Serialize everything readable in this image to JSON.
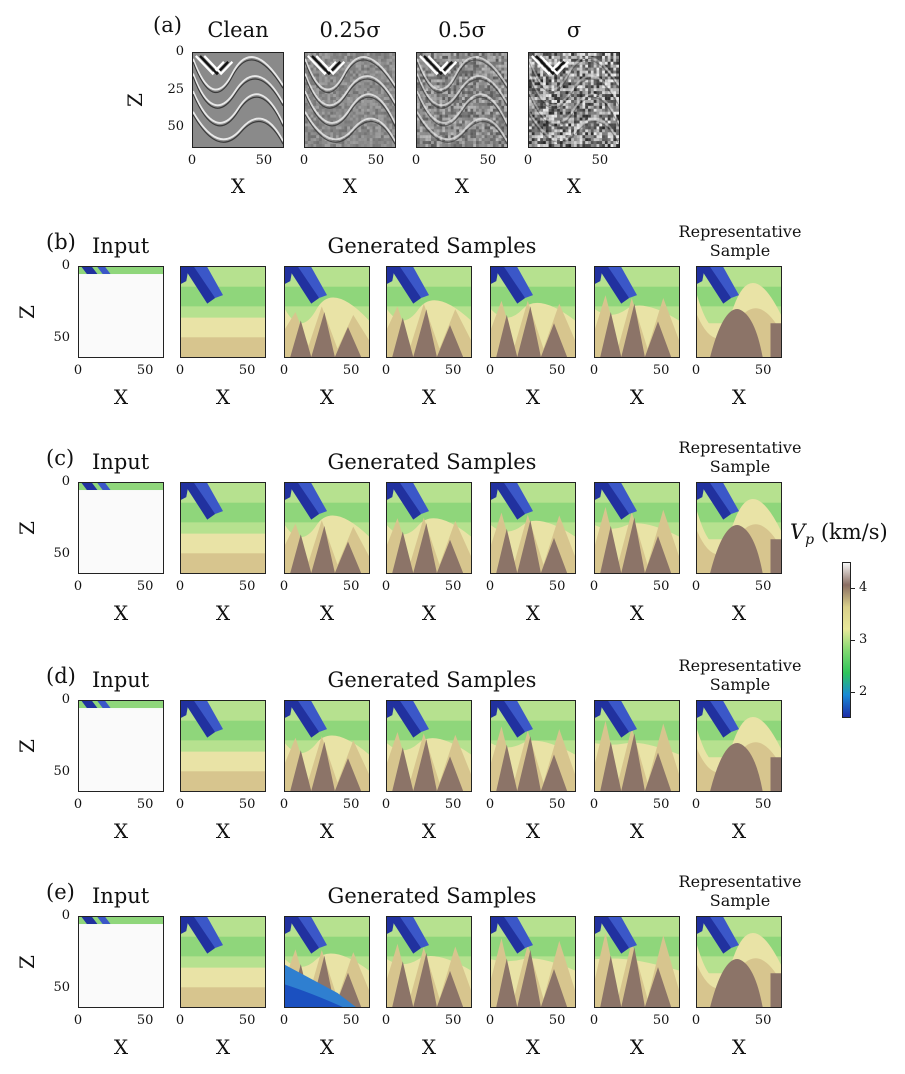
{
  "panel_a": {
    "letter": "(a)",
    "titles": [
      "Clean",
      "0.25σ",
      "0.5σ",
      "σ"
    ],
    "z_label": "Z",
    "x_label": "X",
    "z_ticks": [
      "0",
      "25",
      "50"
    ],
    "x_ticks": [
      "0",
      "50"
    ]
  },
  "rows": [
    {
      "letter": "(b)",
      "input_title": "Input",
      "samples_title": "Generated Samples",
      "rep_title": "Representative Sample",
      "z_label": "Z",
      "x_label": "X",
      "z_ticks": [
        "0",
        "50"
      ],
      "x_ticks": [
        "0",
        "50"
      ]
    },
    {
      "letter": "(c)",
      "input_title": "Input",
      "samples_title": "Generated Samples",
      "rep_title": "Representative Sample",
      "z_label": "Z",
      "x_label": "X",
      "z_ticks": [
        "0",
        "50"
      ],
      "x_ticks": [
        "0",
        "50"
      ]
    },
    {
      "letter": "(d)",
      "input_title": "Input",
      "samples_title": "Generated Samples",
      "rep_title": "Representative Sample",
      "z_label": "Z",
      "x_label": "X",
      "z_ticks": [
        "0",
        "50"
      ],
      "x_ticks": [
        "0",
        "50"
      ]
    },
    {
      "letter": "(e)",
      "input_title": "Input",
      "samples_title": "Generated Samples",
      "rep_title": "Representative Sample",
      "z_label": "Z",
      "x_label": "X",
      "z_ticks": [
        "0",
        "50"
      ],
      "x_ticks": [
        "0",
        "50"
      ]
    }
  ],
  "colorbar": {
    "label": "V_p (km/s)",
    "label_symbol": "V",
    "label_sub": "p",
    "label_units": "(km/s)",
    "ticks": [
      "4",
      "3",
      "2"
    ],
    "tick_values": [
      4,
      3,
      2
    ],
    "range": [
      1.5,
      4.5
    ],
    "colors": [
      "#f7f7f7",
      "#8a6d62",
      "#d9cf8a",
      "#e8e89a",
      "#7fd870",
      "#2ec55b",
      "#1a8ad6",
      "#1e2ea8"
    ]
  },
  "palette": {
    "deep_blue": "#21319f",
    "green": "#8fd67b",
    "light_green": "#b6e18f",
    "yellow": "#e9e3a6",
    "tan": "#d7c58e",
    "brown": "#8c7468",
    "white_input": "#fafafa"
  }
}
